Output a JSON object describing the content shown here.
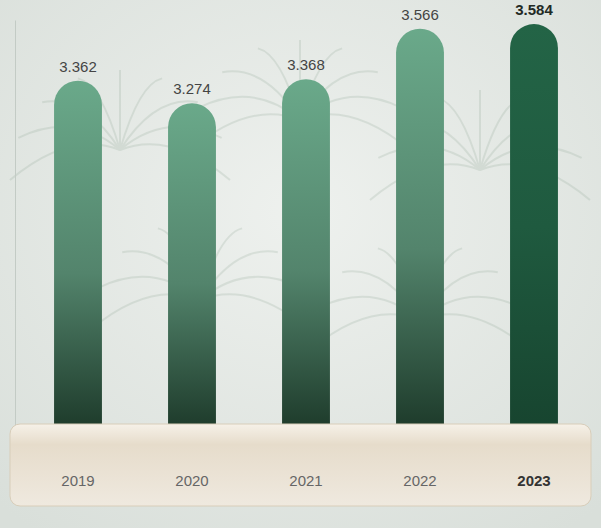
{
  "chart_data": {
    "type": "bar",
    "categories": [
      "2019",
      "2020",
      "2021",
      "2022",
      "2023"
    ],
    "values": [
      3.362,
      3.274,
      3.368,
      3.566,
      3.584
    ],
    "colors": [
      "#6aa98a",
      "#6aa98a",
      "#6aa98a",
      "#6aa98a",
      "#1f5a3f"
    ],
    "ylim": [
      2,
      3.6
    ],
    "data_labels": true,
    "tick_labels": "x"
  }
}
